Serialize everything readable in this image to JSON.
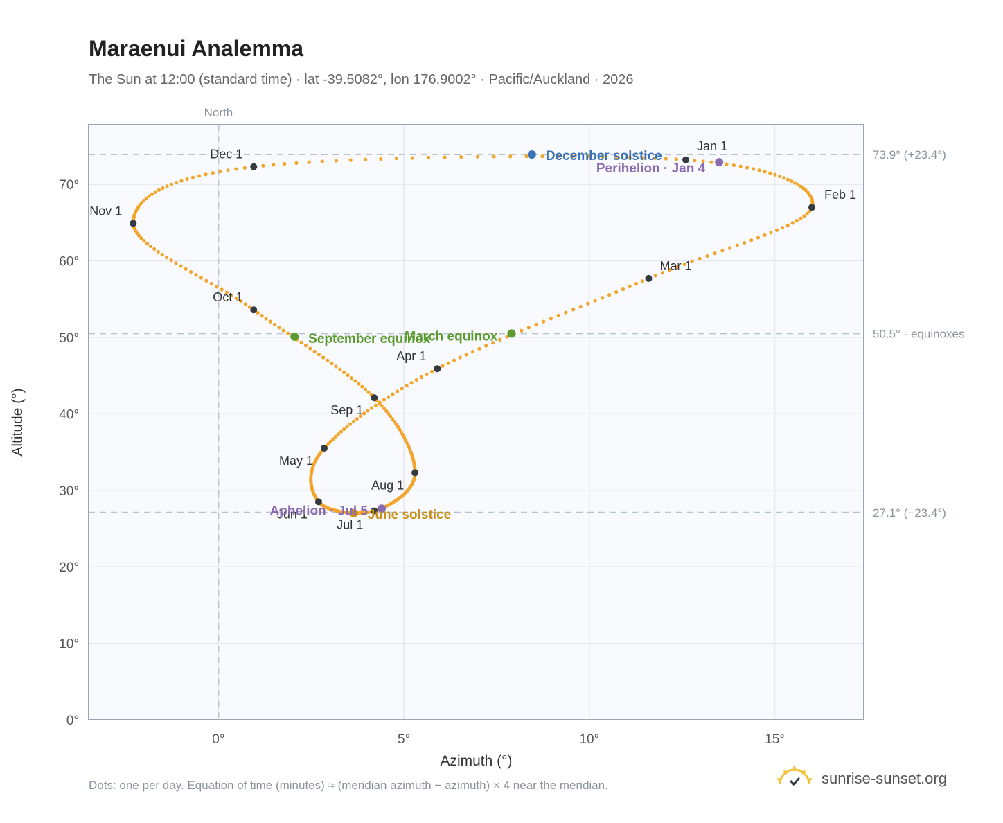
{
  "header": {
    "title": "Maraenui Analemma",
    "subtitle": "The Sun at 12:00 (standard time) · lat -39.5082°, lon 176.9002° · Pacific/Auckland · 2026"
  },
  "footer": {
    "note": "Dots: one per day. Equation of time (minutes) ≈ (meridian azimuth − azimuth) × 4 near the meridian.",
    "brand": "sunrise-sunset.org",
    "brand_icon": "sun-check-icon"
  },
  "colors": {
    "path": "#f2a52a",
    "month_marker": "#333a40",
    "equinox": "#5a9a2e",
    "december_solstice": "#3a72b8",
    "june_solstice": "#c8901a",
    "perihelion": "#8a6bb0",
    "reference_line": "#b7c3cf",
    "plot_bg": "#f8fafd",
    "grid": "#e3e9ef"
  },
  "chart_data": {
    "type": "scatter",
    "xlabel": "Azimuth (°)",
    "ylabel": "Altitude (°)",
    "xlim": [
      -3.5,
      17.4
    ],
    "ylim": [
      0,
      77.8
    ],
    "x_ticks": [
      0,
      5,
      10,
      15
    ],
    "x_tick_labels": [
      "0°",
      "5°",
      "10°",
      "15°"
    ],
    "y_ticks": [
      0,
      10,
      20,
      30,
      40,
      50,
      60,
      70
    ],
    "y_tick_labels": [
      "0°",
      "10°",
      "20°",
      "30°",
      "40°",
      "50°",
      "60°",
      "70°"
    ],
    "grid": true,
    "north_line": {
      "x": 0,
      "label": "North"
    },
    "reference_lines": [
      {
        "y": 73.9,
        "label": "73.9° (+23.4°)"
      },
      {
        "y": 50.5,
        "label": "50.5° · equinoxes"
      },
      {
        "y": 27.1,
        "label": "27.1° (−23.4°)"
      }
    ],
    "month_markers": [
      {
        "label": "Jan 1",
        "x": 12.6,
        "y": 73.2
      },
      {
        "label": "Feb 1",
        "x": 16.0,
        "y": 67.0
      },
      {
        "label": "Mar 1",
        "x": 11.6,
        "y": 57.7
      },
      {
        "label": "Apr 1",
        "x": 5.9,
        "y": 45.9
      },
      {
        "label": "May 1",
        "x": 2.85,
        "y": 35.5
      },
      {
        "label": "Jun 1",
        "x": 2.7,
        "y": 28.5
      },
      {
        "label": "Jul 1",
        "x": 4.2,
        "y": 27.3
      },
      {
        "label": "Aug 1",
        "x": 5.3,
        "y": 32.3
      },
      {
        "label": "Sep 1",
        "x": 4.2,
        "y": 42.1
      },
      {
        "label": "Oct 1",
        "x": 0.95,
        "y": 53.6
      },
      {
        "label": "Nov 1",
        "x": -2.3,
        "y": 64.9
      },
      {
        "label": "Dec 1",
        "x": 0.95,
        "y": 72.3
      }
    ],
    "events": [
      {
        "label": "December solstice",
        "x": 8.45,
        "y": 73.9,
        "type": "december_solstice"
      },
      {
        "label": "Perihelion · Jan 4",
        "x": 13.5,
        "y": 72.9,
        "type": "perihelion"
      },
      {
        "label": "March equinox",
        "x": 7.9,
        "y": 50.5,
        "type": "equinox"
      },
      {
        "label": "September equinox",
        "x": 2.05,
        "y": 50.1,
        "type": "equinox"
      },
      {
        "label": "June solstice",
        "x": 3.65,
        "y": 27.0,
        "type": "june_solstice"
      },
      {
        "label": "Aphelion · Jul 5",
        "x": 4.4,
        "y": 27.6,
        "type": "perihelion"
      }
    ],
    "path_points_per_day": 365
  }
}
